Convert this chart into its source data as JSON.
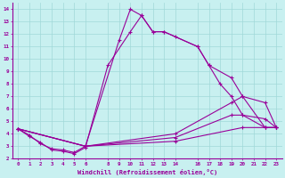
{
  "xlabel": "Windchill (Refroidissement éolien,°C)",
  "ylabel": "",
  "bg_color": "#c8f0f0",
  "line_color": "#990099",
  "xlim": [
    -0.5,
    23.5
  ],
  "ylim": [
    2,
    14.5
  ],
  "xticks": [
    0,
    1,
    2,
    3,
    4,
    5,
    6,
    8,
    9,
    10,
    11,
    12,
    13,
    14,
    16,
    17,
    18,
    19,
    20,
    21,
    22,
    23
  ],
  "yticks": [
    2,
    3,
    4,
    5,
    6,
    7,
    8,
    9,
    10,
    11,
    12,
    13,
    14
  ],
  "series": [
    {
      "x": [
        0,
        1,
        2,
        3,
        4,
        5,
        6,
        9,
        10,
        11,
        12,
        13,
        16,
        17,
        19,
        20,
        22,
        23
      ],
      "y": [
        4.4,
        3.9,
        3.2,
        2.8,
        2.7,
        2.5,
        3.0,
        11.5,
        14.0,
        13.5,
        12.2,
        12.2,
        11.0,
        9.5,
        8.5,
        7.0,
        4.5,
        4.5
      ]
    },
    {
      "x": [
        0,
        1,
        2,
        3,
        4,
        5,
        6,
        8,
        10,
        11,
        12,
        13,
        14,
        16,
        17,
        18,
        19,
        20,
        22,
        23
      ],
      "y": [
        4.4,
        3.8,
        3.3,
        2.7,
        2.6,
        2.4,
        2.9,
        9.5,
        12.2,
        13.5,
        12.2,
        12.2,
        11.8,
        11.0,
        9.5,
        8.0,
        7.0,
        5.5,
        4.5,
        4.5
      ]
    },
    {
      "x": [
        0,
        6,
        14,
        19,
        20,
        22,
        23
      ],
      "y": [
        4.4,
        3.0,
        4.0,
        6.5,
        7.0,
        6.5,
        4.5
      ]
    },
    {
      "x": [
        0,
        6,
        14,
        19,
        20,
        22,
        23
      ],
      "y": [
        4.4,
        3.0,
        3.7,
        5.5,
        5.5,
        5.2,
        4.5
      ]
    },
    {
      "x": [
        0,
        6,
        14,
        20,
        22,
        23
      ],
      "y": [
        4.4,
        3.0,
        3.4,
        4.5,
        4.5,
        4.5
      ]
    }
  ]
}
